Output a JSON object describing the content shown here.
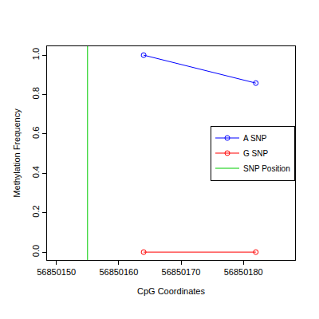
{
  "chart_data": {
    "type": "line",
    "x_label": "CpG Coordinates",
    "y_label": "Methylation Frequency",
    "series": [
      {
        "name": "A SNP",
        "color": "#0000ff",
        "marker": "circle-open",
        "x": [
          56850164,
          56850182
        ],
        "values": [
          1.0,
          0.858
        ]
      },
      {
        "name": "G SNP",
        "color": "#ff0000",
        "marker": "circle-open",
        "x": [
          56850164,
          56850182
        ],
        "values": [
          0.0,
          0.0
        ]
      },
      {
        "name": "SNP Position",
        "color": "#00cc00",
        "type": "vline",
        "x": [
          56850155
        ]
      }
    ],
    "xlim": [
      56850148.5,
      56850188.3
    ],
    "xticks": [
      56850150,
      56850160,
      56850170,
      56850180
    ],
    "ylim": [
      -0.04,
      1.045
    ],
    "yticks": [
      {
        "value": 0,
        "label": "0.0"
      },
      {
        "value": 0.2,
        "label": "0.2"
      },
      {
        "value": 0.4,
        "label": "0.4"
      },
      {
        "value": 0.6,
        "label": "0.6"
      },
      {
        "value": 0.8,
        "label": "0.8"
      },
      {
        "value": 1.0,
        "label": "1.0"
      }
    ],
    "grid": false,
    "legend": "right"
  }
}
